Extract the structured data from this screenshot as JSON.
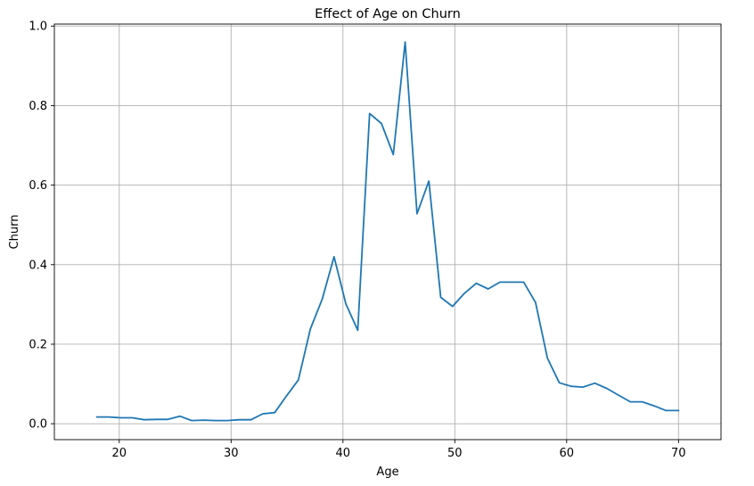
{
  "chart_data": {
    "type": "line",
    "title": "Effect of Age on Churn",
    "xlabel": "Age",
    "ylabel": "Churn",
    "xlim": [
      14.2,
      73.8
    ],
    "ylim": [
      -0.04,
      1.005
    ],
    "xticks": [
      20,
      30,
      40,
      50,
      60,
      70
    ],
    "yticks": [
      0.0,
      0.2,
      0.4,
      0.6,
      0.8,
      1.0
    ],
    "xtick_labels": [
      "20",
      "30",
      "40",
      "50",
      "60",
      "70"
    ],
    "ytick_labels": [
      "0.0",
      "0.2",
      "0.4",
      "0.6",
      "0.8",
      "1.0"
    ],
    "grid": true,
    "series": [
      {
        "color": "#1f77b4",
        "x": [
          18.0,
          19.06,
          20.12,
          21.18,
          22.24,
          23.3,
          24.36,
          25.42,
          26.48,
          27.54,
          28.6,
          29.66,
          30.72,
          31.78,
          32.84,
          33.9,
          34.96,
          36.02,
          37.08,
          38.14,
          39.2,
          40.26,
          41.32,
          42.38,
          43.44,
          44.5,
          45.56,
          46.62,
          47.68,
          48.74,
          49.8,
          50.86,
          51.92,
          52.98,
          54.04,
          55.1,
          56.16,
          57.22,
          58.28,
          59.34,
          60.4,
          61.46,
          62.52,
          63.58,
          64.64,
          65.7,
          66.76,
          67.82,
          68.88,
          70.0
        ],
        "y": [
          0.017,
          0.017,
          0.015,
          0.015,
          0.01,
          0.011,
          0.011,
          0.019,
          0.008,
          0.009,
          0.008,
          0.008,
          0.01,
          0.01,
          0.025,
          0.028,
          0.07,
          0.11,
          0.238,
          0.313,
          0.42,
          0.301,
          0.235,
          0.78,
          0.755,
          0.677,
          0.96,
          0.528,
          0.61,
          0.318,
          0.295,
          0.328,
          0.353,
          0.339,
          0.356,
          0.356,
          0.356,
          0.305,
          0.165,
          0.103,
          0.094,
          0.092,
          0.102,
          0.089,
          0.072,
          0.055,
          0.055,
          0.045,
          0.033,
          0.033
        ]
      }
    ]
  }
}
